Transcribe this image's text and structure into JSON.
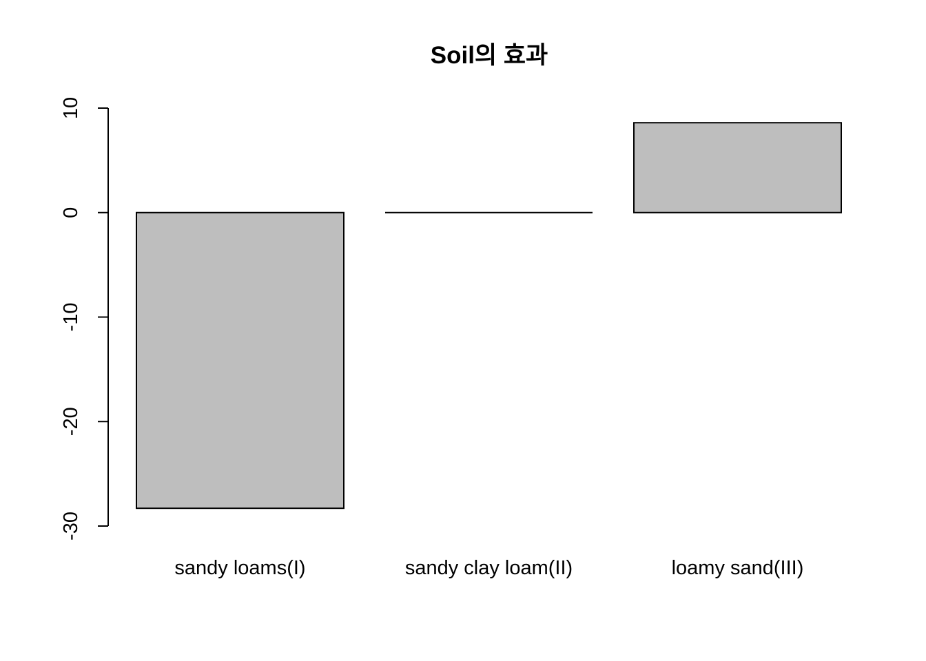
{
  "chart_data": {
    "type": "bar",
    "title": "Soil의 효과",
    "xlabel": "",
    "ylabel": "",
    "categories": [
      "sandy loams(I)",
      "sandy clay loam(II)",
      "loamy sand(III)"
    ],
    "values": [
      -28.3,
      0,
      8.6
    ],
    "ylim": [
      -30,
      10
    ],
    "yticks": [
      -30,
      -20,
      -10,
      0,
      10
    ],
    "ytick_labels": [
      "-30",
      "-20",
      "-10",
      "0",
      "10"
    ],
    "bar_color": "#bebebe",
    "edge_color": "#000000",
    "grid": false,
    "legend": "none"
  }
}
